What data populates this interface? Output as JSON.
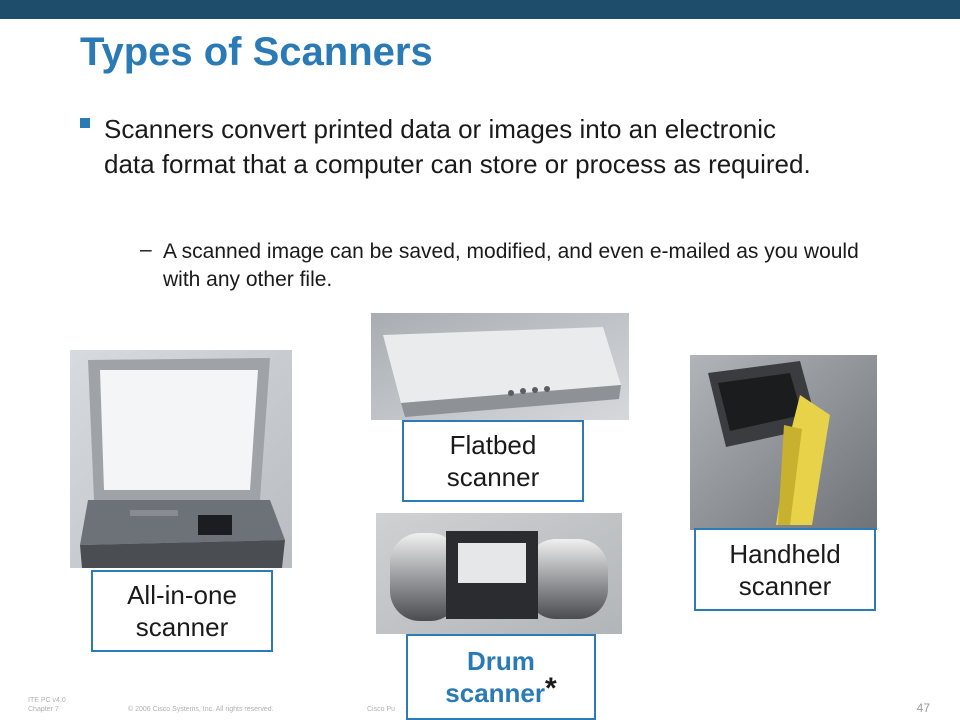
{
  "slide": {
    "title": "Types of Scanners",
    "bullet_main": "Scanners convert printed data or images into an electronic data format that a computer can store or process as required.",
    "sub_dash": "–",
    "bullet_sub": "A scanned image can be saved, modified, and even e-mailed as you would with any other file."
  },
  "scanners": {
    "all_in_one": {
      "line1": "All-in-one",
      "line2": "scanner"
    },
    "flatbed": {
      "line1": "Flatbed",
      "line2": "scanner"
    },
    "drum": {
      "line1": "Drum",
      "line2": "scanner",
      "marker": "*"
    },
    "handheld": {
      "line1": "Handheld",
      "line2": "scanner"
    }
  },
  "footer": {
    "course": "ITE PC v4.0",
    "chapter": "Chapter 7",
    "copyright": "© 2006 Cisco Systems, Inc. All rights reserved.",
    "public": "Cisco Pu",
    "page_number": "47"
  },
  "colors": {
    "top_bar": "#1d4d6b",
    "title": "#2a7ab5",
    "label_border": "#2b7bb9"
  }
}
